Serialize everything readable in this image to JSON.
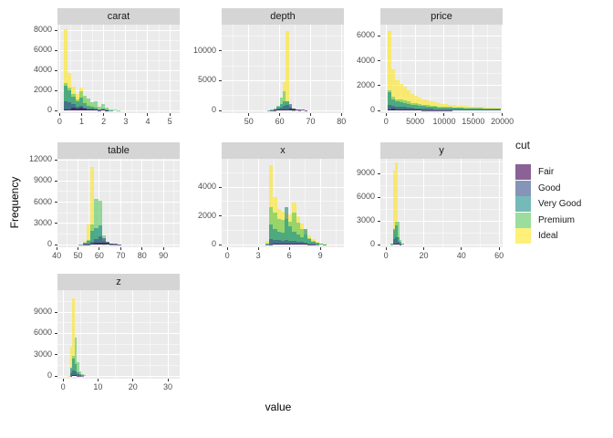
{
  "figure": {
    "x_axis_title": "value",
    "y_axis_title": "Frequency"
  },
  "legend": {
    "title": "cut",
    "entries": [
      {
        "label": "Fair",
        "cut": "fair"
      },
      {
        "label": "Good",
        "cut": "good"
      },
      {
        "label": "Very Good",
        "cut": "very_good"
      },
      {
        "label": "Premium",
        "cut": "premium"
      },
      {
        "label": "Ideal",
        "cut": "ideal"
      }
    ]
  },
  "colors": {
    "fair": "#440154",
    "good": "#3B528B",
    "very_good": "#21908C",
    "premium": "#5DC863",
    "ideal": "#FDE725",
    "fill_alpha": 0.62,
    "panel_bg": "#ebebeb",
    "strip_bg": "#d5d5d5",
    "grid": "#ffffff"
  },
  "chart_data": {
    "type": "bar",
    "subtype": "faceted-overlaid-histograms",
    "position": "identity",
    "alpha": 0.62,
    "facet_variable": "variable",
    "fill_variable": "cut",
    "cut_levels": [
      "fair",
      "good",
      "very_good",
      "premium",
      "ideal"
    ],
    "draw_order_bottom_to_top": [
      "ideal",
      "premium",
      "very_good",
      "good",
      "fair"
    ],
    "note": "bins arrays are [x_start, fair, good, very_good, premium, ideal] counts",
    "facets": [
      {
        "name": "carat",
        "col": 0,
        "row": 0,
        "x_domain": [
          -0.1,
          5.45
        ],
        "y_max": 8550,
        "bin_width": 0.17,
        "x_ticks": [
          0,
          1,
          2,
          3,
          4,
          5
        ],
        "x_tick_labels": [
          "0",
          "1",
          "2",
          "3",
          "4",
          "5"
        ],
        "y_ticks": [
          0,
          2000,
          4000,
          6000,
          8000
        ],
        "y_tick_labels": [
          "0",
          "2000",
          "4000",
          "6000",
          "8000"
        ],
        "bins": [
          [
            0.2,
            80,
            900,
            2500,
            2700,
            8100
          ],
          [
            0.37,
            120,
            800,
            2000,
            2300,
            3700
          ],
          [
            0.54,
            250,
            600,
            1400,
            1600,
            2350
          ],
          [
            0.71,
            200,
            350,
            900,
            1100,
            1600
          ],
          [
            0.88,
            300,
            500,
            1300,
            1900,
            2300
          ],
          [
            1.05,
            180,
            280,
            700,
            1450,
            1150
          ],
          [
            1.22,
            120,
            200,
            500,
            1150,
            700
          ],
          [
            1.39,
            90,
            150,
            380,
            800,
            500
          ],
          [
            1.56,
            80,
            120,
            280,
            900,
            400
          ],
          [
            1.73,
            40,
            60,
            120,
            350,
            150
          ],
          [
            1.9,
            60,
            90,
            200,
            600,
            150
          ],
          [
            2.07,
            30,
            40,
            80,
            250,
            50
          ],
          [
            2.24,
            15,
            15,
            30,
            120,
            20
          ],
          [
            2.41,
            8,
            8,
            15,
            60,
            10
          ],
          [
            2.58,
            4,
            4,
            8,
            30,
            5
          ],
          [
            2.75,
            2,
            2,
            4,
            15,
            2
          ],
          [
            2.92,
            1,
            1,
            2,
            8,
            1
          ],
          [
            3.09,
            1,
            1,
            1,
            4,
            0
          ],
          [
            3.26,
            1,
            0,
            1,
            2,
            0
          ],
          [
            3.43,
            1,
            0,
            0,
            1,
            0
          ],
          [
            3.6,
            1,
            0,
            0,
            1,
            0
          ],
          [
            4.11,
            1,
            0,
            0,
            0,
            0
          ],
          [
            4.96,
            1,
            0,
            0,
            0,
            0
          ]
        ]
      },
      {
        "name": "depth",
        "col": 1,
        "row": 0,
        "x_domain": [
          41.2,
          80.8
        ],
        "y_max": 14440,
        "bin_width": 1,
        "x_ticks": [
          50,
          60,
          70,
          80
        ],
        "x_tick_labels": [
          "50",
          "60",
          "70",
          "80"
        ],
        "y_ticks": [
          0,
          5000,
          10000
        ],
        "y_tick_labels": [
          "0",
          "5000",
          "10000"
        ],
        "bins": [
          [
            55,
            10,
            8,
            20,
            10,
            4
          ],
          [
            56,
            20,
            20,
            60,
            25,
            10
          ],
          [
            57,
            30,
            50,
            150,
            60,
            25
          ],
          [
            58,
            60,
            120,
            280,
            180,
            60
          ],
          [
            59,
            90,
            250,
            600,
            700,
            250
          ],
          [
            60,
            130,
            500,
            1100,
            2200,
            900
          ],
          [
            61,
            160,
            700,
            1600,
            3300,
            4700
          ],
          [
            62,
            180,
            900,
            1500,
            1600,
            13300
          ],
          [
            63,
            350,
            1100,
            600,
            300,
            180
          ],
          [
            64,
            300,
            250,
            80,
            40,
            20
          ],
          [
            65,
            220,
            100,
            20,
            10,
            5
          ],
          [
            66,
            150,
            40,
            8,
            4,
            2
          ],
          [
            67,
            80,
            15,
            3,
            2,
            1
          ],
          [
            68,
            40,
            8,
            1,
            1,
            0
          ],
          [
            69,
            25,
            4,
            1,
            0,
            0
          ],
          [
            70,
            12,
            2,
            0,
            0,
            0
          ]
        ]
      },
      {
        "name": "price",
        "col": 2,
        "row": 0,
        "x_domain": [
          -980,
          20050
        ],
        "y_max": 6900,
        "bin_width": 650,
        "x_ticks": [
          0,
          5000,
          10000,
          15000,
          20000
        ],
        "x_tick_labels": [
          "0",
          "5000",
          "10000",
          "15000",
          "20000"
        ],
        "y_ticks": [
          0,
          2000,
          4000,
          6000
        ],
        "y_tick_labels": [
          "0",
          "2000",
          "4000",
          "6000"
        ],
        "bins": [
          [
            300,
            100,
            450,
            1500,
            1600,
            6400
          ],
          [
            950,
            120,
            400,
            900,
            1100,
            3300
          ],
          [
            1600,
            90,
            300,
            700,
            900,
            2400
          ],
          [
            2250,
            80,
            280,
            650,
            850,
            2100
          ],
          [
            2900,
            70,
            260,
            600,
            800,
            1900
          ],
          [
            3550,
            60,
            230,
            520,
            700,
            1600
          ],
          [
            4200,
            52,
            200,
            460,
            620,
            1350
          ],
          [
            4850,
            46,
            180,
            420,
            560,
            1150
          ],
          [
            5500,
            40,
            160,
            380,
            500,
            1000
          ],
          [
            6150,
            36,
            145,
            350,
            450,
            880
          ],
          [
            6800,
            32,
            130,
            320,
            410,
            780
          ],
          [
            7450,
            29,
            120,
            295,
            380,
            700
          ],
          [
            8100,
            26,
            110,
            275,
            350,
            630
          ],
          [
            8750,
            24,
            102,
            258,
            330,
            570
          ],
          [
            9400,
            22,
            95,
            243,
            310,
            520
          ],
          [
            10050,
            20,
            89,
            230,
            290,
            480
          ],
          [
            10700,
            19,
            84,
            218,
            270,
            440
          ],
          [
            11350,
            18,
            79,
            208,
            255,
            410
          ],
          [
            12000,
            17,
            75,
            198,
            240,
            380
          ],
          [
            12650,
            16,
            71,
            190,
            230,
            360
          ],
          [
            13300,
            15,
            68,
            182,
            220,
            340
          ],
          [
            13950,
            14,
            65,
            175,
            210,
            320
          ],
          [
            14600,
            13,
            62,
            168,
            200,
            300
          ],
          [
            15250,
            13,
            59,
            162,
            190,
            285
          ],
          [
            15900,
            12,
            57,
            157,
            185,
            270
          ],
          [
            16550,
            12,
            55,
            152,
            180,
            260
          ],
          [
            17200,
            11,
            53,
            148,
            175,
            250
          ],
          [
            17850,
            11,
            51,
            144,
            170,
            240
          ],
          [
            18500,
            10,
            49,
            140,
            165,
            230
          ],
          [
            19150,
            10,
            47,
            136,
            160,
            220
          ]
        ]
      },
      {
        "name": "table",
        "col": 0,
        "row": 1,
        "x_domain": [
          40.4,
          97.6
        ],
        "y_max": 12150,
        "bin_width": 1.8,
        "x_ticks": [
          40,
          50,
          60,
          70,
          80,
          90
        ],
        "x_tick_labels": [
          "40",
          "50",
          "60",
          "70",
          "80",
          "90"
        ],
        "y_ticks": [
          0,
          3000,
          6000,
          9000,
          12000
        ],
        "y_tick_labels": [
          "0",
          "3000",
          "6000",
          "9000",
          "12000"
        ],
        "bins": [
          [
            50.4,
            15,
            25,
            40,
            30,
            30
          ],
          [
            52.2,
            40,
            80,
            200,
            250,
            550
          ],
          [
            54.0,
            60,
            150,
            500,
            700,
            2900
          ],
          [
            55.8,
            120,
            450,
            1900,
            2800,
            11000
          ],
          [
            57.6,
            200,
            800,
            2300,
            6500,
            1100
          ],
          [
            59.4,
            280,
            1200,
            2700,
            6200,
            300
          ],
          [
            61.2,
            250,
            900,
            500,
            1300,
            60
          ],
          [
            63.0,
            200,
            400,
            150,
            450,
            20
          ],
          [
            64.8,
            150,
            180,
            60,
            120,
            8
          ],
          [
            66.6,
            100,
            60,
            20,
            30,
            3
          ],
          [
            68.4,
            50,
            20,
            6,
            8,
            1
          ],
          [
            70.2,
            20,
            6,
            2,
            2,
            0
          ]
        ]
      },
      {
        "name": "x",
        "col": 1,
        "row": 1,
        "x_domain": [
          -0.54,
          11.28
        ],
        "y_max": 5970,
        "bin_width": 0.37,
        "x_ticks": [
          0,
          3,
          6,
          9
        ],
        "x_tick_labels": [
          "0",
          "3",
          "6",
          "9"
        ],
        "y_ticks": [
          0,
          2000,
          4000
        ],
        "y_tick_labels": [
          "0",
          "2000",
          "4000"
        ],
        "bins": [
          [
            3.7,
            5,
            25,
            90,
            50,
            230
          ],
          [
            4.07,
            25,
            380,
            1400,
            2600,
            5500
          ],
          [
            4.44,
            40,
            350,
            1100,
            2200,
            3300
          ],
          [
            4.81,
            45,
            300,
            900,
            1800,
            2500
          ],
          [
            5.18,
            50,
            280,
            800,
            1700,
            2300
          ],
          [
            5.55,
            55,
            300,
            2600,
            1800,
            2200
          ],
          [
            5.92,
            50,
            260,
            1300,
            1600,
            2100
          ],
          [
            6.29,
            60,
            280,
            900,
            2200,
            2900
          ],
          [
            6.66,
            50,
            220,
            700,
            1500,
            2000
          ],
          [
            7.03,
            45,
            180,
            500,
            1100,
            1450
          ],
          [
            7.4,
            40,
            130,
            1100,
            700,
            1000
          ],
          [
            7.77,
            30,
            80,
            400,
            450,
            650
          ],
          [
            8.14,
            20,
            50,
            200,
            280,
            380
          ],
          [
            8.51,
            12,
            25,
            100,
            150,
            190
          ],
          [
            8.88,
            8,
            14,
            50,
            70,
            90
          ],
          [
            9.25,
            4,
            6,
            20,
            30,
            35
          ],
          [
            9.62,
            2,
            3,
            8,
            10,
            12
          ]
        ]
      },
      {
        "name": "y",
        "col": 2,
        "row": 1,
        "x_domain": [
          -2.95,
          61.85
        ],
        "y_max": 10850,
        "bin_width": 1.2,
        "x_ticks": [
          0,
          20,
          40,
          60
        ],
        "x_tick_labels": [
          "0",
          "20",
          "40",
          "60"
        ],
        "y_ticks": [
          0,
          3000,
          6000,
          9000
        ],
        "y_tick_labels": [
          "0",
          "3000",
          "6000",
          "9000"
        ],
        "bins": [
          [
            2.4,
            5,
            20,
            60,
            40,
            140
          ],
          [
            3.6,
            60,
            650,
            2000,
            1700,
            9300
          ],
          [
            4.8,
            120,
            950,
            2400,
            2900,
            10400
          ],
          [
            6.0,
            80,
            320,
            900,
            2900,
            1000
          ],
          [
            7.2,
            40,
            90,
            300,
            600,
            250
          ],
          [
            8.4,
            15,
            25,
            60,
            120,
            60
          ],
          [
            9.6,
            5,
            8,
            15,
            25,
            12
          ],
          [
            10.8,
            2,
            3,
            5,
            8,
            4
          ]
        ]
      },
      {
        "name": "z",
        "col": 0,
        "row": 2,
        "x_domain": [
          -1.59,
          33.39
        ],
        "y_max": 12100,
        "bin_width": 0.65,
        "x_ticks": [
          0,
          10,
          20,
          30
        ],
        "x_tick_labels": [
          "0",
          "10",
          "20",
          "30"
        ],
        "y_ticks": [
          0,
          3000,
          6000,
          9000
        ],
        "y_tick_labels": [
          "0",
          "3000",
          "6000",
          "9000"
        ],
        "bins": [
          [
            1.3,
            3,
            10,
            25,
            15,
            40
          ],
          [
            1.95,
            50,
            380,
            1200,
            950,
            4100
          ],
          [
            2.6,
            110,
            750,
            2400,
            2800,
            10900
          ],
          [
            3.25,
            130,
            650,
            1700,
            5400,
            2100
          ],
          [
            3.9,
            60,
            240,
            480,
            1900,
            700
          ],
          [
            4.55,
            40,
            100,
            200,
            700,
            250
          ],
          [
            5.2,
            20,
            40,
            80,
            250,
            90
          ],
          [
            5.85,
            8,
            14,
            25,
            70,
            25
          ],
          [
            6.5,
            3,
            5,
            8,
            20,
            8
          ]
        ]
      }
    ]
  }
}
